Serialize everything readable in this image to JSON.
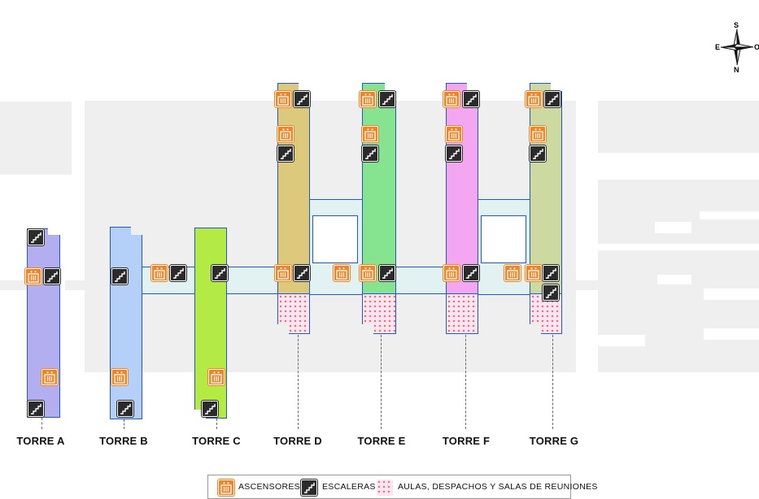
{
  "compass": {
    "south": "S",
    "east": "E",
    "west": "O",
    "north": "N",
    "icon": "compass-rose-icon"
  },
  "towers": [
    {
      "label": "TORRE A",
      "color": "#b3aef0"
    },
    {
      "label": "TORRE B",
      "color": "#b5d0f8"
    },
    {
      "label": "TORRE C",
      "color": "#b3ea43"
    },
    {
      "label": "TORRE D",
      "color": "#ddc97c"
    },
    {
      "label": "TORRE E",
      "color": "#86e38f"
    },
    {
      "label": "TORRE F",
      "color": "#f4a6f0"
    },
    {
      "label": "TORRE G",
      "color": "#ccd9a0"
    }
  ],
  "legend": {
    "elevators": "ASCENSORES",
    "stairs": "ESCALERAS",
    "rooms": "AULAS, DESPACHOS Y SALAS DE REUNIONES",
    "elevator_icon": "elevator-icon",
    "stairs_icon": "stairs-icon",
    "rooms_swatch": "dotted-pink-swatch"
  }
}
